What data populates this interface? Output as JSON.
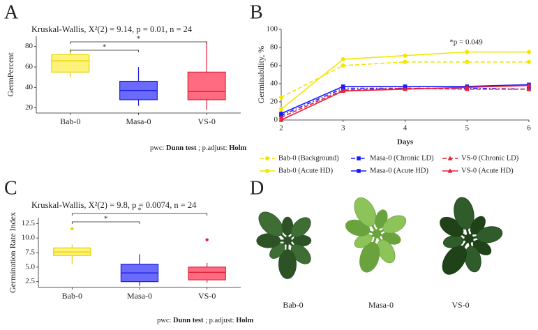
{
  "chart_data": [
    {
      "panel": "A",
      "type": "box",
      "subtitle": "Kruskal-Wallis, X²(2) = 9.14, p = 0.01, n = 24",
      "ylabel": "GermPercent",
      "ylim": [
        15,
        90
      ],
      "yticks": [
        20,
        40,
        60,
        80
      ],
      "categories": [
        "Bab-0",
        "Masa-0",
        "VS-0"
      ],
      "boxes": [
        {
          "min": 50,
          "q1": 55,
          "median": 66,
          "q3": 72,
          "max": 78,
          "color": "#e3d400",
          "fill": "#fff27a"
        },
        {
          "min": 22,
          "q1": 28,
          "median": 37,
          "q3": 46,
          "max": 60,
          "color": "#1f1fd6",
          "fill": "#6a6aff"
        },
        {
          "min": 18,
          "q1": 28,
          "median": 36,
          "q3": 55,
          "max": 85,
          "color": "#e0203a",
          "fill": "#ff6b80"
        }
      ],
      "significance": [
        {
          "groups": [
            "Bab-0",
            "Masa-0"
          ],
          "label": "*"
        },
        {
          "groups": [
            "Bab-0",
            "VS-0"
          ],
          "label": "*"
        }
      ],
      "footnote": {
        "prefix": "pwc:",
        "test": "Dunn test",
        "sep": "; p.adjust:",
        "adjust": "Holm"
      }
    },
    {
      "panel": "B",
      "type": "line",
      "xlabel": "Days",
      "ylabel": "Germinability, %",
      "x": [
        2,
        3,
        4,
        5,
        6
      ],
      "xlim": [
        2,
        6
      ],
      "xticks": [
        2,
        3,
        4,
        5,
        6
      ],
      "ylim": [
        0,
        100
      ],
      "yticks": [
        0,
        20,
        40,
        60,
        80,
        100
      ],
      "annotation": "*p = 0.049",
      "series": [
        {
          "name": "Bab-0 (Background)",
          "color": "#f2e600",
          "linestyle": "dashed",
          "marker": "circle",
          "values": [
            25,
            60,
            64,
            64,
            64
          ]
        },
        {
          "name": "Masa-0 (Chronic LD)",
          "color": "#1a1aff",
          "linestyle": "dashdot",
          "marker": "square",
          "values": [
            5,
            35,
            35,
            35,
            34
          ]
        },
        {
          "name": "VS-0 (Chronic LD)",
          "color": "#e8203a",
          "linestyle": "dashed",
          "marker": "triangle",
          "values": [
            3,
            33,
            35,
            34,
            34
          ]
        },
        {
          "name": "Bab-0 (Acute HD)",
          "color": "#f2e600",
          "linestyle": "solid",
          "marker": "circle",
          "values": [
            12,
            67,
            71,
            75,
            75
          ]
        },
        {
          "name": "Masa-0 (Acute HD)",
          "color": "#1a1aff",
          "linestyle": "solid",
          "marker": "square",
          "values": [
            7,
            37,
            37,
            37,
            39
          ]
        },
        {
          "name": "VS-0 (Acute HD)",
          "color": "#e8203a",
          "linestyle": "solid",
          "marker": "triangle",
          "values": [
            0,
            32,
            34,
            36,
            38
          ]
        }
      ]
    },
    {
      "panel": "C",
      "type": "box",
      "subtitle": "Kruskal-Wallis, X²(2) = 9.8, p = 0.0074, n = 24",
      "ylabel": "Germination Rate Index",
      "ylim": [
        1.5,
        13.5
      ],
      "yticks": [
        2.5,
        {
          "value": 5,
          "label": "5.0"
        },
        7.5,
        {
          "value": 10,
          "label": "10.0"
        },
        12.5
      ],
      "categories": [
        "Bab-0",
        "Masa-0",
        "VS-0"
      ],
      "boxes": [
        {
          "min": 5.5,
          "q1": 7,
          "median": 7.6,
          "q3": 8.3,
          "max": 8.9,
          "outliers": [
            11.6
          ],
          "color": "#e3d400",
          "fill": "#fff27a"
        },
        {
          "min": 1.8,
          "q1": 2.5,
          "median": 4,
          "q3": 5.5,
          "max": 7.2,
          "color": "#1f1fd6",
          "fill": "#6a6aff"
        },
        {
          "min": 2.3,
          "q1": 2.8,
          "median": 4.1,
          "q3": 5,
          "max": 5.7,
          "outliers": [
            9.7
          ],
          "color": "#e0203a",
          "fill": "#ff6b80"
        }
      ],
      "significance": [
        {
          "groups": [
            "Bab-0",
            "Masa-0"
          ],
          "label": "*"
        },
        {
          "groups": [
            "Bab-0",
            "VS-0"
          ],
          "label": "*"
        }
      ],
      "footnote": {
        "prefix": "pwc:",
        "test": "Dunn test",
        "sep": "; p.adjust:",
        "adjust": "Holm"
      }
    }
  ],
  "photo": {
    "panel": "D",
    "labels": [
      "Bab-0",
      "Masa-0",
      "VS-0"
    ]
  }
}
